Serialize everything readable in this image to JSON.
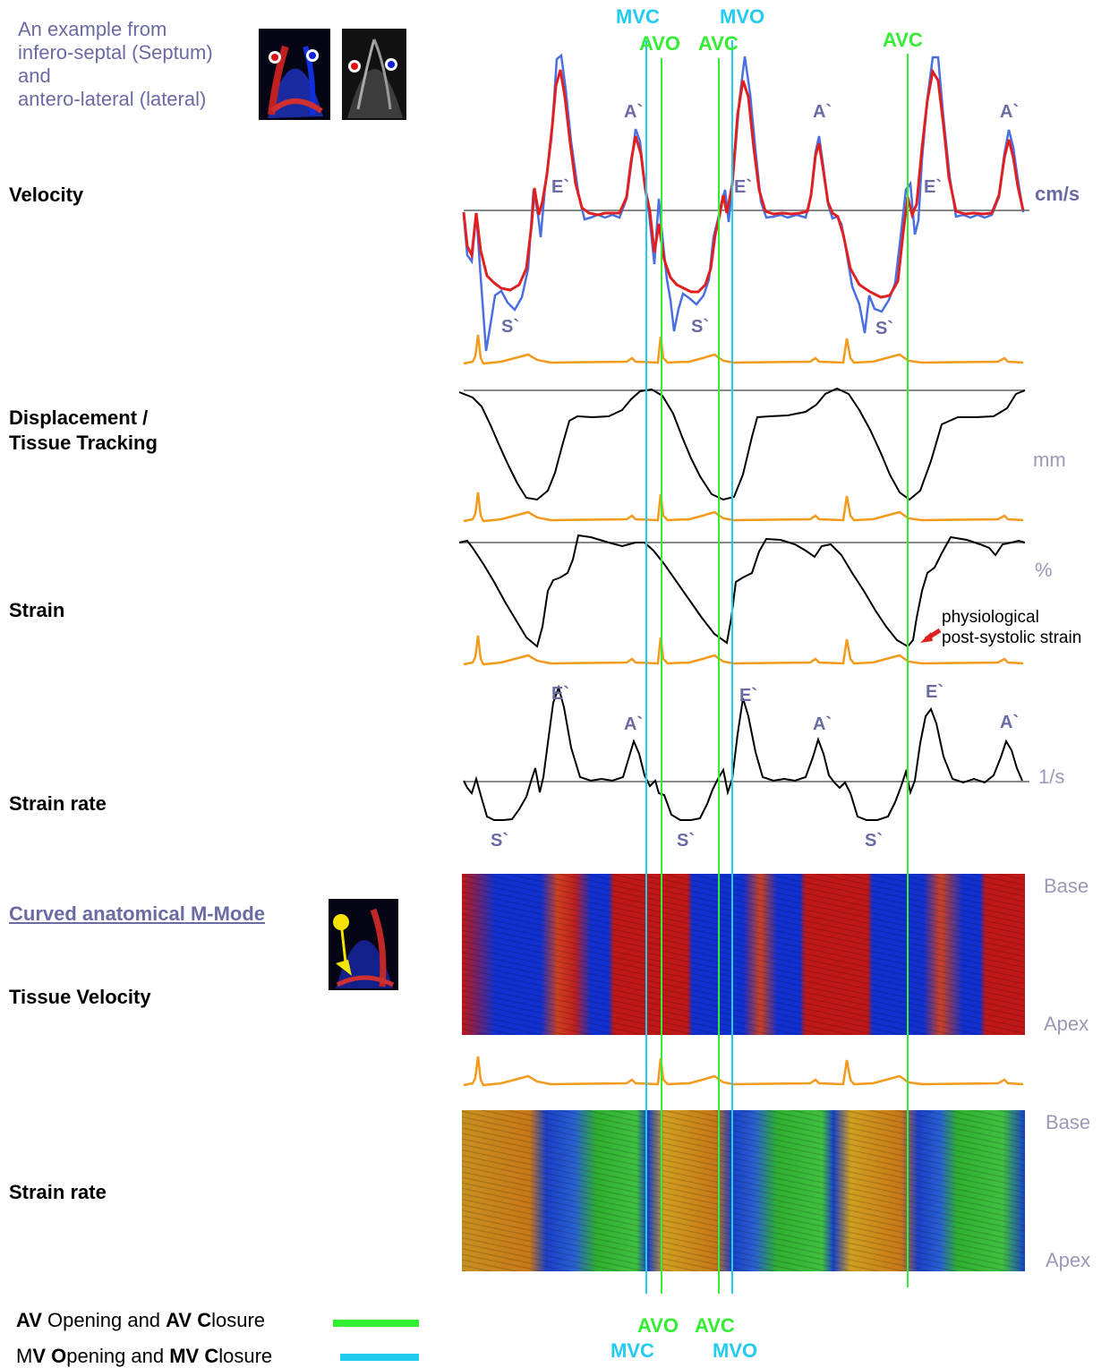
{
  "intro": {
    "lines": [
      "An example from",
      "infero-septal (Septum)",
      "and",
      "antero-lateral (lateral)"
    ]
  },
  "sections": {
    "velocity": "Velocity",
    "displacement": [
      "Displacement /",
      "Tissue Tracking"
    ],
    "strain": "Strain",
    "strain_rate": "Strain rate",
    "mmode_link": "Curved anatomical M-Mode",
    "tissue_velocity": "Tissue Velocity",
    "strain_rate_map": "Strain rate"
  },
  "units": {
    "velocity": "cm/s",
    "displacement": "mm",
    "strain": "%",
    "strain_rate": "1/s",
    "base": "Base",
    "apex": "Apex"
  },
  "waves": {
    "e": "E`",
    "a": "A`",
    "s": "S`"
  },
  "events": {
    "mvc": "MVC",
    "mvo": "MVO",
    "avo": "AVO",
    "avc": "AVC"
  },
  "annotation": {
    "line1": "physiological",
    "line2": "post-systolic strain"
  },
  "legend": {
    "av_prefix": "AV",
    "av_mid1": " Opening and ",
    "av_bold2": "AV C",
    "av_end": "losure",
    "mv_prefix": "M",
    "mv_bold1": "V O",
    "mv_mid": "pening and ",
    "mv_bold2": "MV C",
    "mv_end": "losure"
  },
  "colors": {
    "av_line": "#33ee33",
    "mv_line": "#22ccee",
    "septum_trace": "#e02020",
    "lateral_trace": "#4a6fe0",
    "ecg": "#f39a1c",
    "accent_text": "#6b6ba3"
  }
}
